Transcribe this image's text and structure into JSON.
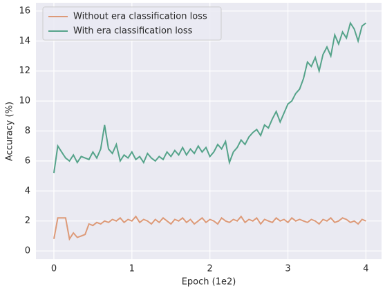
{
  "chart_data": {
    "type": "line",
    "xlabel": "Epoch (1e2)",
    "ylabel": "Accuracy (%)",
    "x": [
      0,
      0.05,
      0.1,
      0.15,
      0.2,
      0.25,
      0.3,
      0.35,
      0.4,
      0.45,
      0.5,
      0.55,
      0.6,
      0.65,
      0.7,
      0.75,
      0.8,
      0.85,
      0.9,
      0.95,
      1.0,
      1.05,
      1.1,
      1.15,
      1.2,
      1.25,
      1.3,
      1.35,
      1.4,
      1.45,
      1.5,
      1.55,
      1.6,
      1.65,
      1.7,
      1.75,
      1.8,
      1.85,
      1.9,
      1.95,
      2.0,
      2.05,
      2.1,
      2.15,
      2.2,
      2.25,
      2.3,
      2.35,
      2.4,
      2.45,
      2.5,
      2.55,
      2.6,
      2.65,
      2.7,
      2.75,
      2.8,
      2.85,
      2.9,
      2.95,
      3.0,
      3.05,
      3.1,
      3.15,
      3.2,
      3.25,
      3.3,
      3.35,
      3.4,
      3.45,
      3.5,
      3.55,
      3.6,
      3.65,
      3.7,
      3.75,
      3.8,
      3.85,
      3.9,
      3.95,
      4.0
    ],
    "series": [
      {
        "name": "Without era classification loss",
        "color": "#dd9a78",
        "values": [
          0.8,
          2.2,
          2.2,
          2.2,
          0.8,
          1.2,
          0.9,
          1.0,
          1.1,
          1.8,
          1.7,
          1.9,
          1.8,
          2.0,
          1.9,
          2.1,
          2.0,
          2.2,
          1.9,
          2.1,
          2.0,
          2.3,
          1.9,
          2.1,
          2.0,
          1.8,
          2.1,
          1.9,
          2.2,
          2.0,
          1.8,
          2.1,
          2.0,
          2.2,
          1.9,
          2.1,
          1.8,
          2.0,
          2.2,
          1.9,
          2.1,
          2.0,
          1.8,
          2.2,
          2.0,
          1.9,
          2.1,
          2.0,
          2.3,
          1.9,
          2.1,
          2.0,
          2.2,
          1.8,
          2.1,
          2.0,
          1.9,
          2.2,
          2.0,
          2.1,
          1.9,
          2.2,
          2.0,
          2.1,
          2.0,
          1.9,
          2.1,
          2.0,
          1.8,
          2.1,
          2.0,
          2.2,
          1.9,
          2.0,
          2.2,
          2.1,
          1.9,
          2.0,
          1.8,
          2.1,
          2.0
        ]
      },
      {
        "name": "With era classification loss",
        "color": "#55a38a",
        "values": [
          5.2,
          7.0,
          6.6,
          6.2,
          6.0,
          6.4,
          5.9,
          6.3,
          6.2,
          6.1,
          6.6,
          6.2,
          6.8,
          8.4,
          6.8,
          6.5,
          7.1,
          6.0,
          6.4,
          6.2,
          6.6,
          6.1,
          6.3,
          5.9,
          6.5,
          6.2,
          6.0,
          6.3,
          6.1,
          6.6,
          6.3,
          6.7,
          6.4,
          6.9,
          6.4,
          6.8,
          6.5,
          7.0,
          6.6,
          6.9,
          6.3,
          6.6,
          7.1,
          6.8,
          7.3,
          5.9,
          6.6,
          6.9,
          7.4,
          7.1,
          7.6,
          7.9,
          8.1,
          7.7,
          8.4,
          8.2,
          8.8,
          9.3,
          8.6,
          9.2,
          9.8,
          10.0,
          10.5,
          10.8,
          11.5,
          12.6,
          12.3,
          12.9,
          12.0,
          13.1,
          13.6,
          13.0,
          14.4,
          13.8,
          14.6,
          14.2,
          15.2,
          14.8,
          14.0,
          15.0,
          15.2
        ]
      }
    ],
    "xlim": [
      -0.23,
      4.2
    ],
    "ylim": [
      -0.55,
      16.55
    ],
    "xticks": [
      0,
      1,
      2,
      3,
      4
    ],
    "yticks": [
      0,
      2,
      4,
      6,
      8,
      10,
      12,
      14,
      16
    ],
    "grid": true,
    "legend": "upper left"
  }
}
